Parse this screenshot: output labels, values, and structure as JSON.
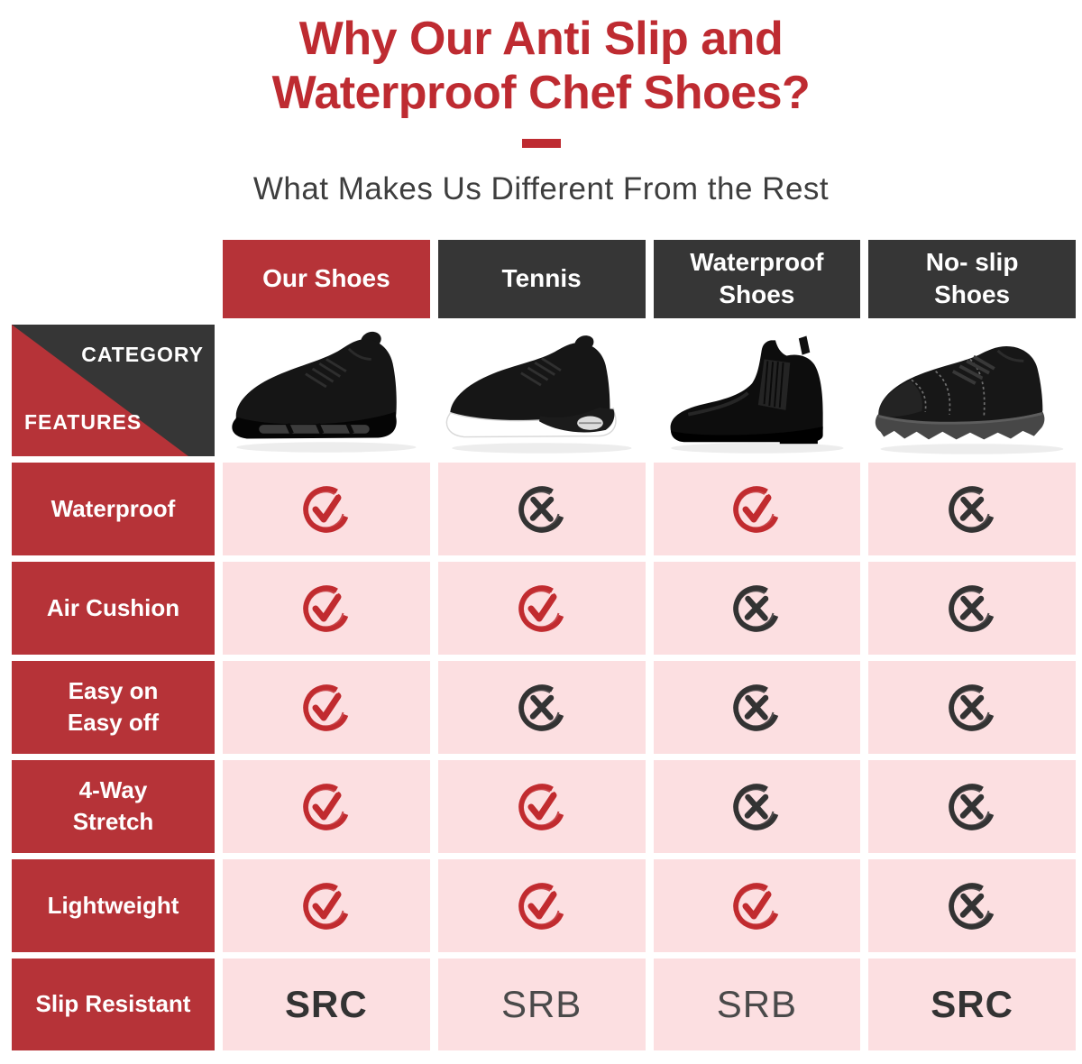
{
  "colors": {
    "title_red": "#be2b31",
    "accent_red": "#b63338",
    "label_red": "#b63338",
    "header_dark": "#363636",
    "cell_pink": "#fcdfe1",
    "check_red": "#c12b2f",
    "cross_dark": "#333333"
  },
  "header": {
    "title": "Why Our Anti Slip and\nWaterproof Chef Shoes?",
    "subtitle": "What Makes Us Different From the Rest"
  },
  "table": {
    "corner": {
      "category_label": "CATEGORY",
      "features_label": "FEATURES"
    },
    "columns": [
      {
        "label": "Our Shoes",
        "highlight": true,
        "image": "our-shoes-sneaker"
      },
      {
        "label": "Tennis",
        "highlight": false,
        "image": "tennis-sneaker"
      },
      {
        "label": "Waterproof\nShoes",
        "highlight": false,
        "image": "waterproof-boot"
      },
      {
        "label": "No- slip\nShoes",
        "highlight": false,
        "image": "no-slip-shoe"
      }
    ],
    "rows": [
      {
        "label": "Waterproof",
        "cells": [
          {
            "icon": "check"
          },
          {
            "icon": "cross"
          },
          {
            "icon": "check"
          },
          {
            "icon": "cross"
          }
        ]
      },
      {
        "label": "Air Cushion",
        "cells": [
          {
            "icon": "check"
          },
          {
            "icon": "check"
          },
          {
            "icon": "cross"
          },
          {
            "icon": "cross"
          }
        ]
      },
      {
        "label": "Easy on\nEasy off",
        "cells": [
          {
            "icon": "check"
          },
          {
            "icon": "cross"
          },
          {
            "icon": "cross"
          },
          {
            "icon": "cross"
          }
        ]
      },
      {
        "label": "4-Way\nStretch",
        "cells": [
          {
            "icon": "check"
          },
          {
            "icon": "check"
          },
          {
            "icon": "cross"
          },
          {
            "icon": "cross"
          }
        ]
      },
      {
        "label": "Lightweight",
        "cells": [
          {
            "icon": "check"
          },
          {
            "icon": "check"
          },
          {
            "icon": "check"
          },
          {
            "icon": "cross"
          }
        ]
      },
      {
        "label": "Slip Resistant",
        "cells": [
          {
            "text": "SRC",
            "bold": true
          },
          {
            "text": "SRB",
            "bold": false
          },
          {
            "text": "SRB",
            "bold": false
          },
          {
            "text": "SRC",
            "bold": true
          }
        ]
      }
    ]
  }
}
